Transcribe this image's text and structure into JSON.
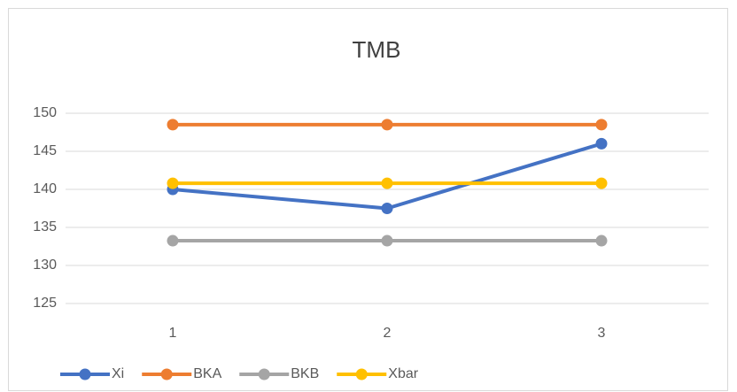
{
  "chart_data": {
    "type": "line",
    "title": "TMB",
    "categories": [
      "1",
      "2",
      "3"
    ],
    "series": [
      {
        "name": "Xi",
        "color": "#4472c4",
        "values": [
          140,
          137.5,
          146
        ]
      },
      {
        "name": "BKA",
        "color": "#ed7d31",
        "values": [
          148.5,
          148.5,
          148.5
        ]
      },
      {
        "name": "BKB",
        "color": "#a5a5a5",
        "values": [
          133.25,
          133.25,
          133.25
        ]
      },
      {
        "name": "Xbar",
        "color": "#ffc000",
        "values": [
          140.8,
          140.8,
          140.8
        ]
      }
    ],
    "ylim": [
      125,
      150
    ],
    "yticks": [
      125,
      130,
      135,
      140,
      145,
      150
    ],
    "grid": true,
    "legend": "bottom"
  }
}
